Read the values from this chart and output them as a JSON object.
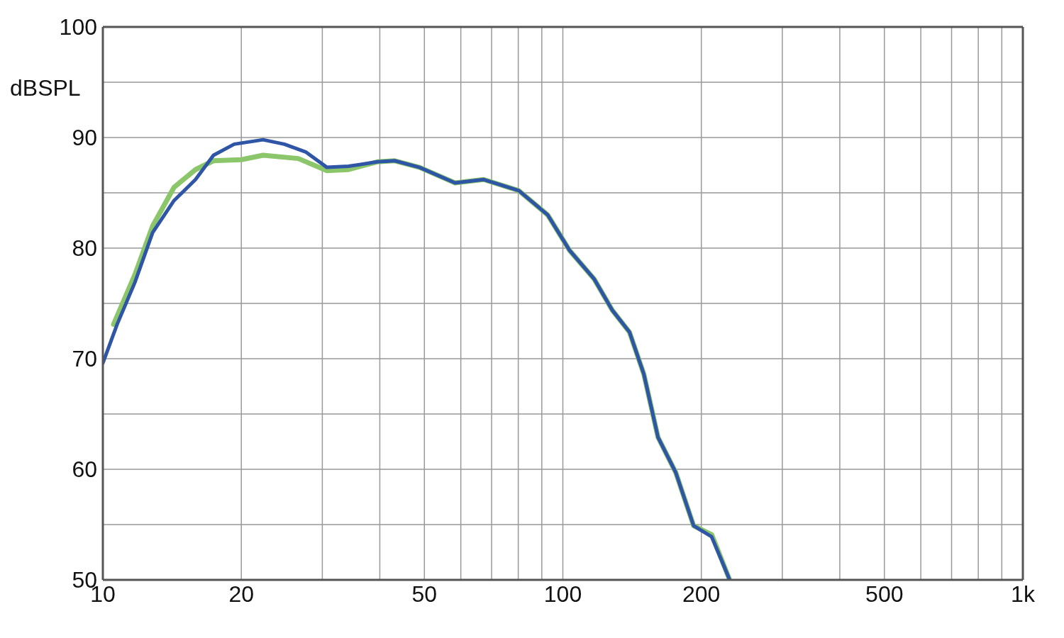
{
  "chart_data": {
    "type": "line",
    "ylabel": "dBSPL",
    "log": "x",
    "grid": true,
    "xlim": [
      10,
      1000
    ],
    "xticks": [
      10,
      20,
      {
        "value": 30,
        "label": null
      },
      {
        "value": 40,
        "label": null
      },
      50,
      {
        "value": 60,
        "label": null
      },
      {
        "value": 70,
        "label": null
      },
      {
        "value": 80,
        "label": null
      },
      {
        "value": 90,
        "label": null
      },
      100,
      200,
      {
        "value": 300,
        "label": null
      },
      {
        "value": 400,
        "label": null
      },
      500,
      {
        "value": 600,
        "label": null
      },
      {
        "value": 700,
        "label": null
      },
      {
        "value": 800,
        "label": null
      },
      {
        "value": 900,
        "label": null
      },
      {
        "value": 1000,
        "label": "1k"
      }
    ],
    "ylim": [
      50,
      100
    ],
    "yticks": [
      50,
      {
        "value": 55,
        "label": null
      },
      60,
      {
        "value": 65,
        "label": null
      },
      70,
      {
        "value": 75,
        "label": null
      },
      80,
      {
        "value": 85,
        "label": null
      },
      90,
      {
        "value": 95,
        "label": null
      },
      100
    ],
    "series": [
      {
        "color": "#8cc66b",
        "x": [
          10.55,
          11.74,
          12.83,
          14.28,
          15.9,
          17.4,
          20.0,
          22.3,
          26.6,
          30.7,
          34.2,
          39.5,
          43.1,
          48.8,
          58.3,
          67.3,
          80.2,
          92.7,
          103.4,
          117,
          128,
          139.6,
          150,
          161,
          176,
          192.4,
          210.6,
          230
        ],
        "values": [
          73.1,
          77.6,
          82.0,
          85.5,
          87.1,
          87.9,
          88.0,
          88.4,
          88.1,
          87.0,
          87.1,
          87.8,
          87.9,
          87.3,
          85.9,
          86.2,
          85.2,
          83.0,
          79.8,
          77.2,
          74.4,
          72.4,
          68.6,
          62.9,
          59.7,
          54.9,
          54.1,
          50.1
        ]
      },
      {
        "color": "#2f56a6",
        "x": [
          10,
          10.74,
          11.74,
          12.83,
          14.28,
          15.9,
          17.4,
          19.3,
          22.3,
          24.8,
          27.6,
          30.7,
          34.2,
          39.5,
          43.1,
          48.8,
          58.3,
          67.3,
          80.2,
          92.7,
          103.4,
          117,
          128,
          139.6,
          150,
          161,
          176,
          192.4,
          210.6,
          230
        ],
        "values": [
          69.6,
          73.1,
          76.9,
          81.4,
          84.3,
          86.2,
          88.4,
          89.4,
          89.8,
          89.4,
          88.7,
          87.3,
          87.4,
          87.8,
          87.9,
          87.3,
          85.9,
          86.2,
          85.2,
          83.0,
          79.8,
          77.2,
          74.4,
          72.4,
          68.6,
          62.9,
          59.7,
          54.9,
          53.9,
          50.1
        ]
      }
    ]
  }
}
